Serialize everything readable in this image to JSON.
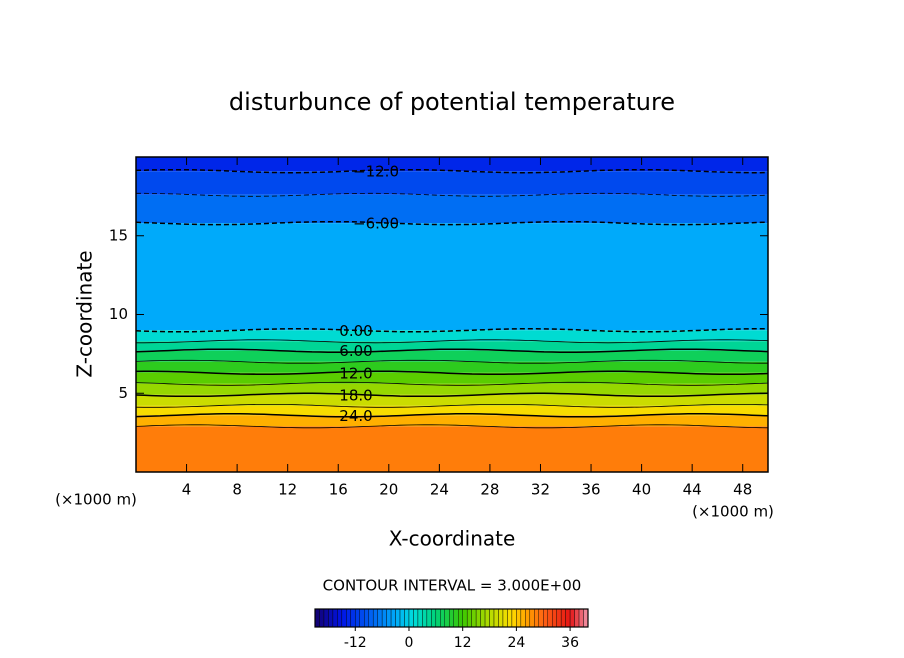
{
  "chart_data": {
    "type": "contour",
    "title": "disturbunce of potential temperature",
    "xlabel": "X-coordinate",
    "ylabel": "Z-coordinate",
    "x_unit_left": "(×1000 m)",
    "x_unit_right": "(×1000 m)",
    "xlim": [
      0,
      50
    ],
    "xticks": [
      4,
      8,
      12,
      16,
      20,
      24,
      28,
      32,
      36,
      40,
      44,
      48
    ],
    "ylim": [
      0,
      20
    ],
    "yticks": [
      5,
      10,
      15
    ],
    "contours": [
      {
        "level": -12,
        "z": 19.1,
        "label": "−12.0"
      },
      {
        "level": -9,
        "z": 17.6
      },
      {
        "level": -6,
        "z": 15.8,
        "label": "−6.00"
      },
      {
        "level": 0,
        "z": 9.0,
        "label": "0.00"
      },
      {
        "level": 3,
        "z": 8.3
      },
      {
        "level": 6,
        "z": 7.7,
        "label": "6.00"
      },
      {
        "level": 9,
        "z": 7.0
      },
      {
        "level": 12,
        "z": 6.3,
        "label": "12.0"
      },
      {
        "level": 15,
        "z": 5.6
      },
      {
        "level": 18,
        "z": 4.9,
        "label": "18.0"
      },
      {
        "level": 21,
        "z": 4.2
      },
      {
        "level": 24,
        "z": 3.6,
        "label": "24.0"
      },
      {
        "level": 27,
        "z": 2.9
      }
    ],
    "contour_interval_text": "CONTOUR INTERVAL = 3.000E+00",
    "colorbar_lim": [
      -21,
      40
    ],
    "colorbar_ticks": [
      -12,
      0,
      12,
      24,
      36
    ]
  }
}
